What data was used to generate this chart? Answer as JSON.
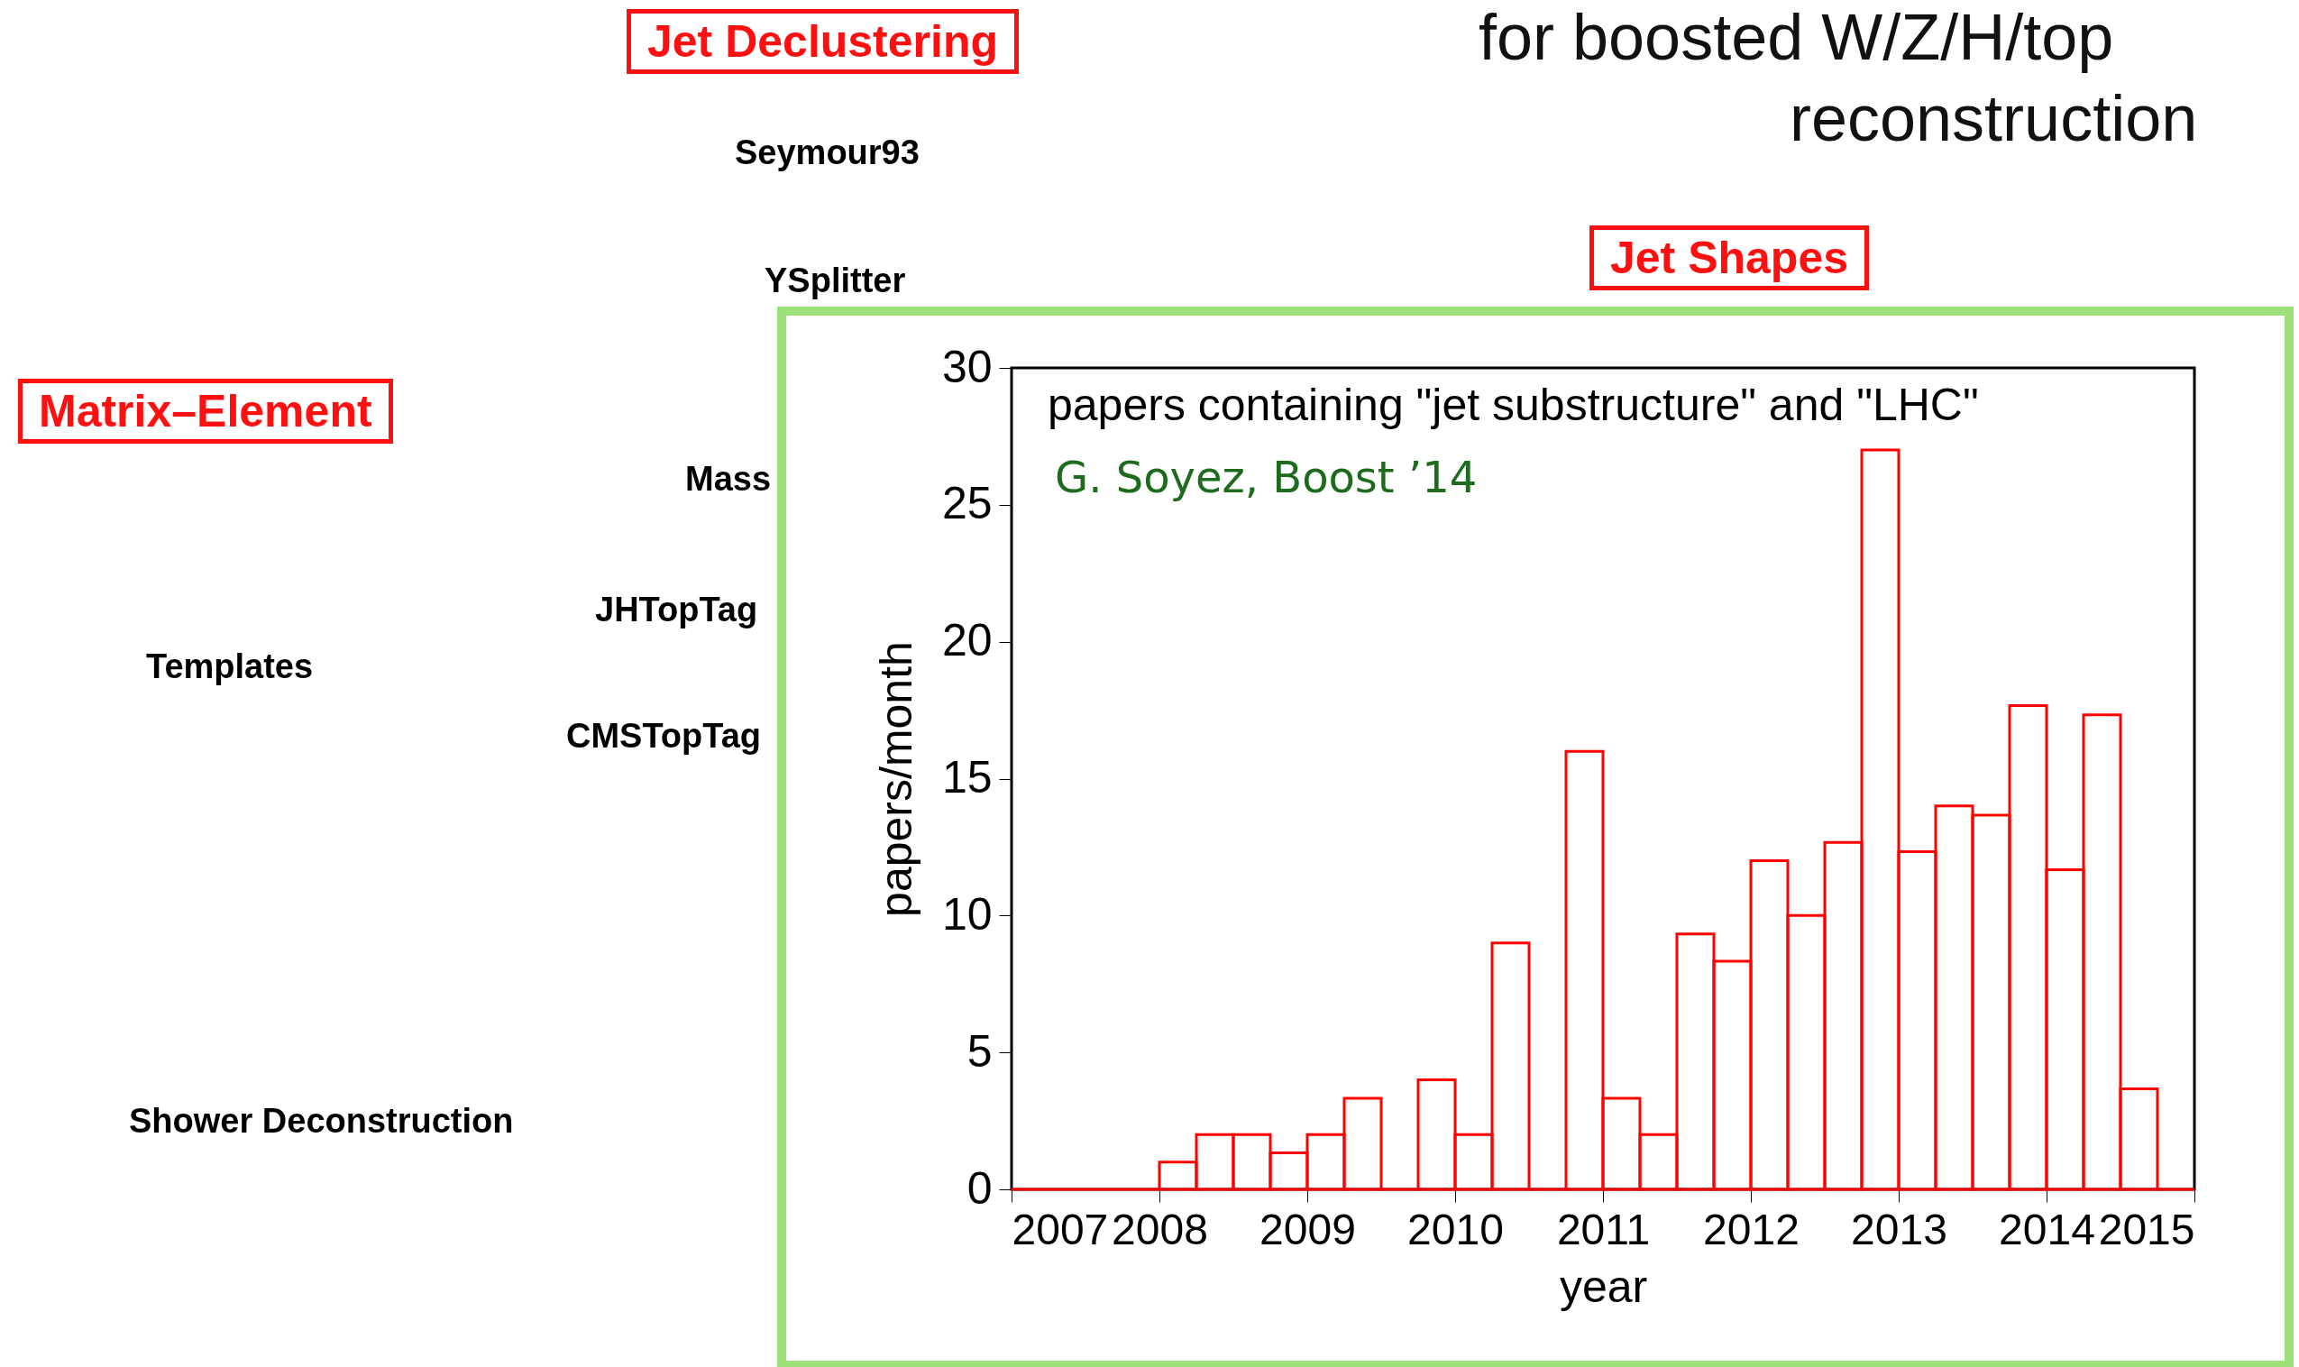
{
  "chart_data": {
    "type": "histogram",
    "title": "papers containing \"jet substructure\" and \"LHC\"",
    "xlabel": "year",
    "ylabel": "papers/month",
    "bins": [
      2007,
      2007.25,
      2007.5,
      2007.75,
      2008,
      2008.25,
      2008.5,
      2008.75,
      2009,
      2009.25,
      2009.5,
      2009.75,
      2010,
      2010.25,
      2010.5,
      2010.75,
      2011,
      2011.25,
      2011.5,
      2011.75,
      2012,
      2012.25,
      2012.5,
      2012.75,
      2013,
      2013.25,
      2013.5,
      2013.75,
      2014,
      2014.25,
      2014.5,
      2014.75,
      2015
    ],
    "values": [
      0,
      0,
      0,
      0,
      1,
      2,
      2,
      1.33,
      2,
      3.33,
      0,
      4,
      2,
      9,
      0,
      16,
      3.33,
      2,
      9.33,
      8.33,
      12,
      10,
      12.67,
      27,
      12.33,
      14,
      13.67,
      17.67,
      11.67,
      17.33,
      3.67,
      0
    ],
    "color": "#ff0000",
    "xlim": [
      2007,
      2015
    ],
    "xticks": [
      2007,
      2008,
      2009,
      2010,
      2011,
      2012,
      2013,
      2014,
      2015
    ],
    "ylim": [
      0,
      30
    ],
    "yticks": [
      0,
      5,
      10,
      15,
      20,
      25,
      30
    ],
    "grid": false,
    "annotations": [
      "G. Soyez, Boost ’14",
      "Jet Declustering",
      "Seymour93",
      "YSplitter",
      "Jet Shapes",
      "Matrix–Element",
      "Mass",
      "JHTopTag",
      "Templates",
      "CMSTopTag",
      "Shower Deconstruction",
      "for boosted W/Z/H/top",
      "reconstruction"
    ]
  }
}
